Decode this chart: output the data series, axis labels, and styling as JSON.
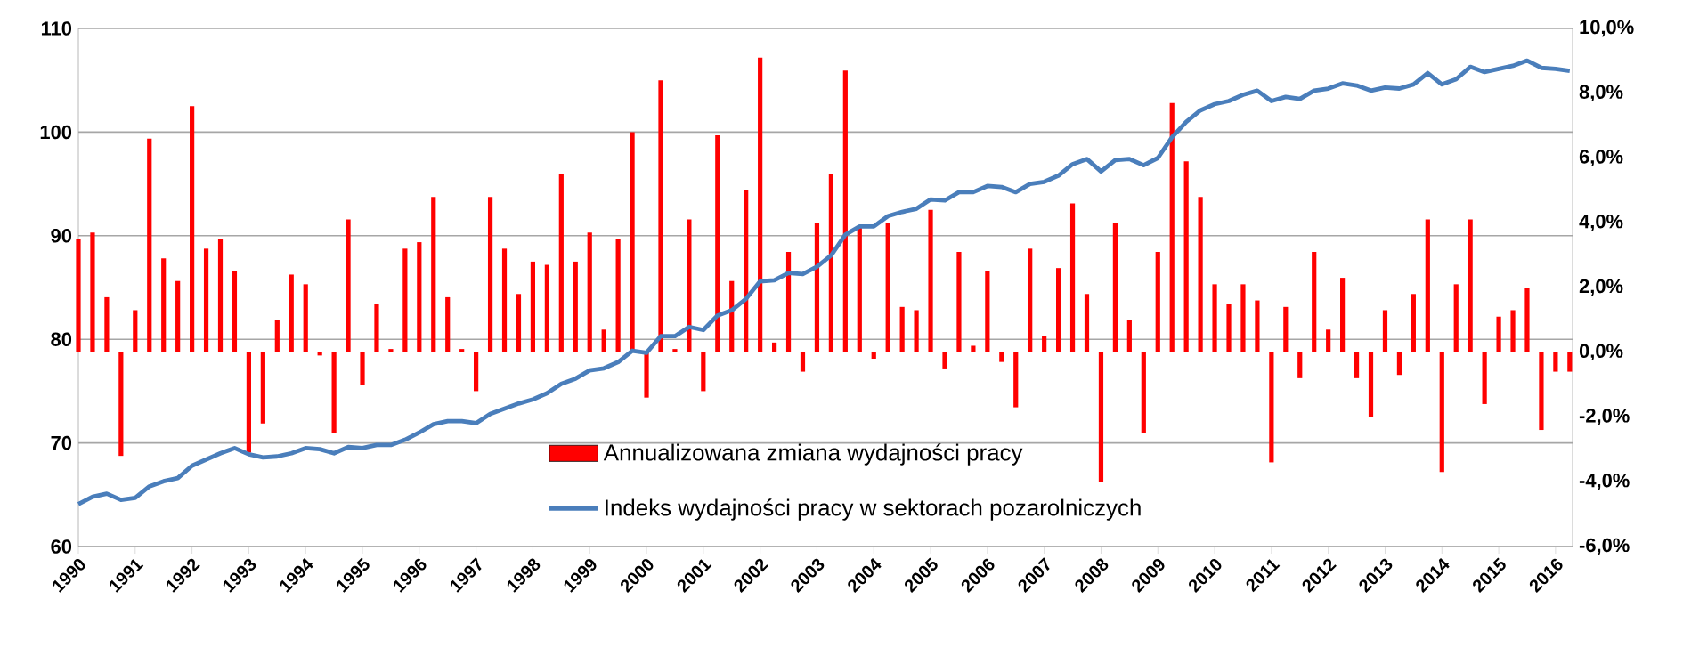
{
  "chart_data": {
    "type": "bar",
    "x": [
      1990,
      1990.25,
      1990.5,
      1990.75,
      1991,
      1991.25,
      1991.5,
      1991.75,
      1992,
      1992.25,
      1992.5,
      1992.75,
      1993,
      1993.25,
      1993.5,
      1993.75,
      1994,
      1994.25,
      1994.5,
      1994.75,
      1995,
      1995.25,
      1995.5,
      1995.75,
      1996,
      1996.25,
      1996.5,
      1996.75,
      1997,
      1997.25,
      1997.5,
      1997.75,
      1998,
      1998.25,
      1998.5,
      1998.75,
      1999,
      1999.25,
      1999.5,
      1999.75,
      2000,
      2000.25,
      2000.5,
      2000.75,
      2001,
      2001.25,
      2001.5,
      2001.75,
      2002,
      2002.25,
      2002.5,
      2002.75,
      2003,
      2003.25,
      2003.5,
      2003.75,
      2004,
      2004.25,
      2004.5,
      2004.75,
      2005,
      2005.25,
      2005.5,
      2005.75,
      2006,
      2006.25,
      2006.5,
      2006.75,
      2007,
      2007.25,
      2007.5,
      2007.75,
      2008,
      2008.25,
      2008.5,
      2008.75,
      2009,
      2009.25,
      2009.5,
      2009.75,
      2010,
      2010.25,
      2010.5,
      2010.75,
      2011,
      2011.25,
      2011.5,
      2011.75,
      2012,
      2012.25,
      2012.5,
      2012.75,
      2013,
      2013.25,
      2013.5,
      2013.75,
      2014,
      2014.25,
      2014.5,
      2014.75,
      2015,
      2015.25,
      2015.5,
      2015.75,
      2016,
      2016.25
    ],
    "xlim": [
      1990,
      2016.3
    ],
    "xticks": [
      1990,
      1991,
      1992,
      1993,
      1994,
      1995,
      1996,
      1997,
      1998,
      1999,
      2000,
      2001,
      2002,
      2003,
      2004,
      2005,
      2006,
      2007,
      2008,
      2009,
      2010,
      2011,
      2012,
      2013,
      2014,
      2015,
      2016
    ],
    "ylim": [
      60,
      110
    ],
    "yticks": [
      60,
      70,
      80,
      90,
      100,
      110
    ],
    "y2lim": [
      -6,
      10
    ],
    "y2ticks": [
      {
        "value": -6,
        "label": "-6,0%"
      },
      {
        "value": -4,
        "label": "-4,0%"
      },
      {
        "value": -2,
        "label": "-2,0%"
      },
      {
        "value": 0,
        "label": "0,0%"
      },
      {
        "value": 2,
        "label": "2,0%"
      },
      {
        "value": 4,
        "label": "4,0%"
      },
      {
        "value": 6,
        "label": "6,0%"
      },
      {
        "value": 8,
        "label": "8,0%"
      },
      {
        "value": 10,
        "label": "10,0%"
      }
    ],
    "grid": "y",
    "legend": "bottom",
    "series": [
      {
        "name": "Annualizowana zmiana wydajności pracy",
        "axis": "y2",
        "color": "#ff0000",
        "values": [
          3.5,
          3.7,
          1.7,
          -3.2,
          1.3,
          6.6,
          2.9,
          2.2,
          7.6,
          3.2,
          3.5,
          2.5,
          -3.1,
          -2.2,
          1.0,
          2.4,
          2.1,
          -0.1,
          -2.5,
          4.1,
          -1.0,
          1.5,
          0.1,
          3.2,
          3.4,
          4.8,
          1.7,
          0.1,
          -1.2,
          4.8,
          3.2,
          1.8,
          2.8,
          2.7,
          5.5,
          2.8,
          3.7,
          0.7,
          3.5,
          6.8,
          -1.4,
          8.4,
          0.1,
          4.1,
          -1.2,
          6.7,
          2.2,
          5.0,
          9.1,
          0.3,
          3.1,
          -0.6,
          4.0,
          5.5,
          8.7,
          3.9,
          -0.2,
          4.0,
          1.4,
          1.3,
          4.4,
          -0.5,
          3.1,
          0.2,
          2.5,
          -0.3,
          -1.7,
          3.2,
          0.5,
          2.6,
          4.6,
          1.8,
          -4.0,
          4.0,
          1.0,
          -2.5,
          3.1,
          7.7,
          5.9,
          4.8,
          2.1,
          1.5,
          2.1,
          1.6,
          -3.4,
          1.4,
          -0.8,
          3.1,
          0.7,
          2.3,
          -0.8,
          -2.0,
          1.3,
          -0.7,
          1.8,
          4.1,
          -3.7,
          2.1,
          4.1,
          -1.6,
          1.1,
          1.3,
          2.0,
          -2.4,
          -0.6,
          -0.6
        ]
      },
      {
        "name": "Indeks wydajności pracy w sektorach pozarolniczych",
        "type": "line",
        "axis": "y",
        "color": "#4a7ebb",
        "values": [
          64.1,
          64.8,
          65.1,
          64.5,
          64.7,
          65.8,
          66.3,
          66.6,
          67.8,
          68.4,
          69.0,
          69.5,
          68.9,
          68.6,
          68.7,
          69.0,
          69.5,
          69.4,
          69.0,
          69.6,
          69.5,
          69.8,
          69.8,
          70.3,
          71.0,
          71.8,
          72.1,
          72.1,
          71.9,
          72.8,
          73.3,
          73.8,
          74.2,
          74.8,
          75.7,
          76.2,
          77.0,
          77.2,
          77.8,
          78.9,
          78.7,
          80.3,
          80.3,
          81.2,
          80.9,
          82.3,
          82.8,
          83.9,
          85.6,
          85.7,
          86.4,
          86.3,
          87.0,
          88.1,
          90.1,
          90.9,
          90.9,
          91.9,
          92.3,
          92.6,
          93.5,
          93.4,
          94.2,
          94.2,
          94.8,
          94.7,
          94.2,
          95.0,
          95.2,
          95.8,
          96.9,
          97.4,
          96.2,
          97.3,
          97.4,
          96.8,
          97.5,
          99.5,
          101.0,
          102.1,
          102.7,
          103.0,
          103.6,
          104.0,
          103.0,
          103.4,
          103.2,
          104.0,
          104.2,
          104.7,
          104.5,
          104.0,
          104.3,
          104.2,
          104.6,
          105.7,
          104.6,
          105.1,
          106.3,
          105.8,
          106.1,
          106.4,
          106.9,
          106.2,
          106.1,
          105.9
        ]
      }
    ]
  }
}
